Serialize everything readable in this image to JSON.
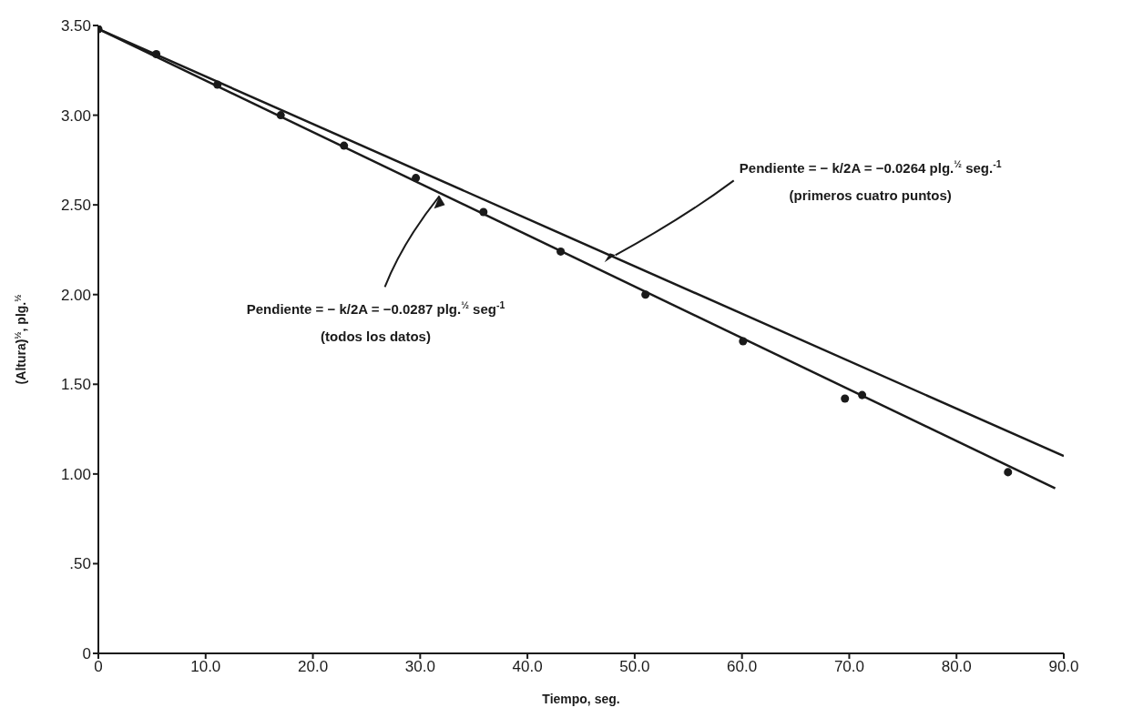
{
  "chart_data": {
    "type": "scatter",
    "xlabel": "Tiempo, seg.",
    "ylabel": "(Altura)$^{½}$, plg.$^{½}$",
    "xlim": [
      0,
      90
    ],
    "ylim": [
      0,
      3.5
    ],
    "xticks": [
      0,
      {
        "value": 10,
        "label": "10.0"
      },
      {
        "value": 20,
        "label": "20.0"
      },
      {
        "value": 30,
        "label": "30.0"
      },
      {
        "value": 40,
        "label": "40.0"
      },
      {
        "value": 50,
        "label": "50.0"
      },
      {
        "value": 60,
        "label": "60.0"
      },
      {
        "value": 70,
        "label": "70.0"
      },
      {
        "value": 80,
        "label": "80.0"
      },
      {
        "value": 90,
        "label": "90.0"
      }
    ],
    "yticks": [
      0,
      {
        "value": 0.5,
        "label": ".50"
      },
      {
        "value": 1,
        "label": "1.00"
      },
      {
        "value": 1.5,
        "label": "1.50"
      },
      {
        "value": 2,
        "label": "2.00"
      },
      {
        "value": 2.5,
        "label": "2.50"
      },
      {
        "value": 3,
        "label": "3.00"
      },
      {
        "value": 3.5,
        "label": "3.50"
      }
    ],
    "grid": false,
    "legend": false,
    "marker": "circle",
    "series": [
      {
        "color": "#1a1a1a",
        "x": [
          0,
          5.4,
          11.1,
          17.0,
          22.9,
          29.6,
          35.9,
          43.1,
          51.0,
          60.1,
          69.6,
          71.2,
          84.8
        ],
        "values": [
          3.48,
          3.34,
          3.17,
          3.0,
          2.83,
          2.65,
          2.46,
          2.24,
          2.0,
          1.74,
          1.42,
          1.44,
          1.01
        ]
      },
      {
        "type": "line",
        "marker": "none",
        "color": "#1a1a1a",
        "line_style": "solid",
        "x": [
          0,
          89.2
        ],
        "values": [
          3.48,
          0.92
        ]
      },
      {
        "type": "line",
        "marker": "none",
        "color": "#1a1a1a",
        "line_style": "solid",
        "x": [
          0,
          90
        ],
        "values": [
          3.48,
          1.1
        ]
      }
    ],
    "annotations": [
      {
        "text": "Pendiente = − k/2A = −0.0287 plg.$^{½}$ seg$^{-1}$",
        "x": 31.8,
        "y": 2.55
      },
      "(todos los datos)",
      {
        "text": "Pendiente = − k/2A = −0.0264 plg.$^{½}$ seg.$^{-1}$",
        "x": 48.2,
        "y": 2.22
      },
      "(primeros cuatro puntos)"
    ]
  }
}
